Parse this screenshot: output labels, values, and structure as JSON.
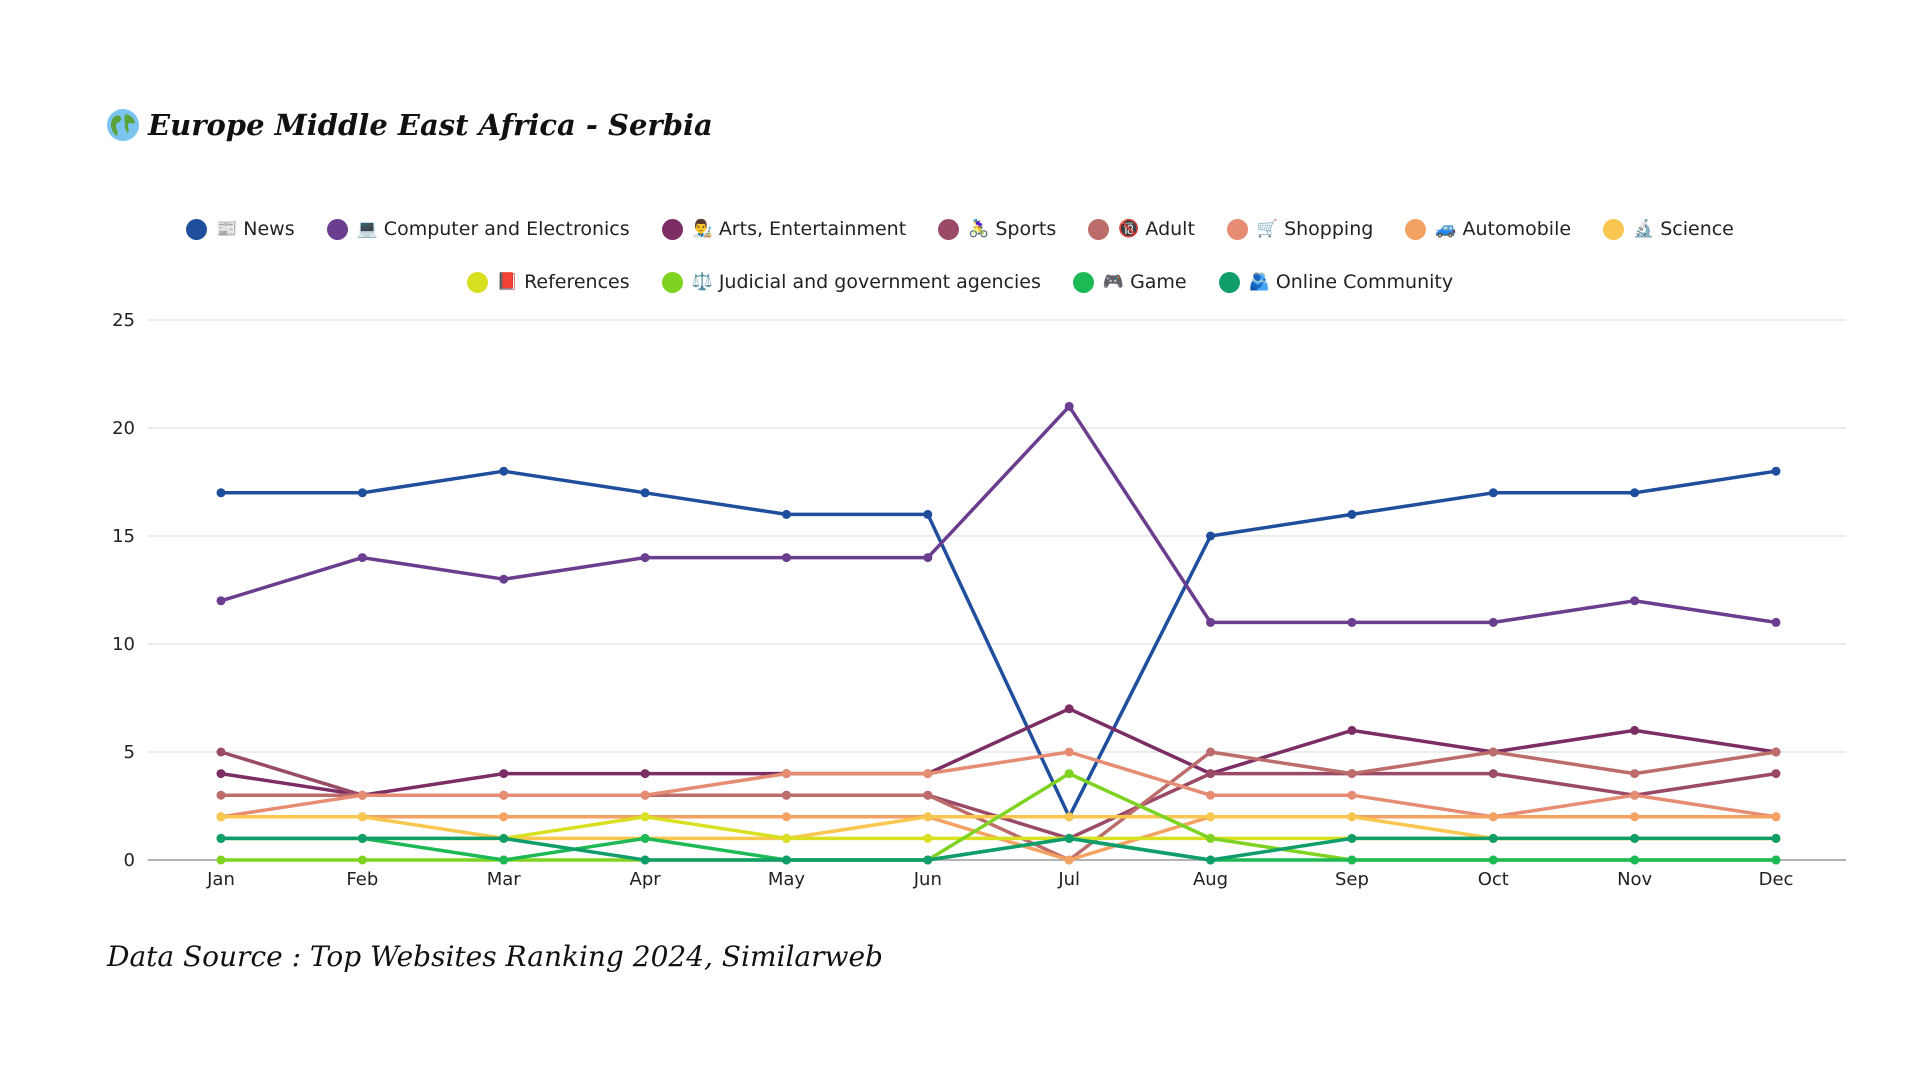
{
  "title": "Europe Middle East Africa - Serbia",
  "source": "Data Source : Top Websites Ranking 2024, Similarweb",
  "chart_data": {
    "type": "line",
    "title": "Europe Middle East Africa - Serbia",
    "xlabel": "",
    "ylabel": "",
    "ylim": [
      0,
      25
    ],
    "yticks": [
      0,
      5,
      10,
      15,
      20,
      25
    ],
    "grid": true,
    "legend_position": "top-center",
    "categories": [
      "Jan",
      "Feb",
      "Mar",
      "Apr",
      "May",
      "Jun",
      "Jul",
      "Aug",
      "Sep",
      "Oct",
      "Nov",
      "Dec"
    ],
    "series": [
      {
        "name": "News",
        "icon": "📰",
        "color": "#1f4e9c",
        "values": [
          17,
          17,
          18,
          17,
          16,
          16,
          2,
          15,
          16,
          17,
          17,
          18
        ]
      },
      {
        "name": "Computer and Electronics",
        "icon": "💻",
        "color": "#6a3d8f",
        "values": [
          12,
          14,
          13,
          14,
          14,
          14,
          21,
          11,
          11,
          11,
          12,
          11
        ]
      },
      {
        "name": "Arts, Entertainment",
        "icon": "👨‍🎨",
        "color": "#7b2d64",
        "values": [
          4,
          3,
          4,
          4,
          4,
          4,
          7,
          4,
          6,
          5,
          6,
          5
        ]
      },
      {
        "name": "Sports",
        "icon": "🚴‍♀️",
        "color": "#9a4a66",
        "values": [
          5,
          3,
          3,
          3,
          3,
          3,
          1,
          4,
          4,
          4,
          3,
          4
        ]
      },
      {
        "name": "Adult",
        "icon": "🔞",
        "color": "#bd6c6c",
        "values": [
          3,
          3,
          3,
          3,
          3,
          3,
          0,
          5,
          4,
          5,
          4,
          5
        ]
      },
      {
        "name": "Shopping",
        "icon": "🛒",
        "color": "#e58c72",
        "values": [
          2,
          3,
          3,
          3,
          4,
          4,
          5,
          3,
          3,
          2,
          3,
          2
        ]
      },
      {
        "name": "Automobile",
        "icon": "🚙",
        "color": "#f4a261",
        "values": [
          2,
          2,
          2,
          2,
          2,
          2,
          0,
          2,
          2,
          2,
          2,
          2
        ]
      },
      {
        "name": "Science",
        "icon": "🔬",
        "color": "#f9c74f",
        "values": [
          2,
          2,
          1,
          1,
          1,
          2,
          2,
          2,
          2,
          1,
          1,
          1
        ]
      },
      {
        "name": "References",
        "icon": "📕",
        "color": "#d9e021",
        "values": [
          1,
          1,
          1,
          2,
          1,
          1,
          1,
          1,
          1,
          1,
          1,
          1
        ]
      },
      {
        "name": "Judicial and government agencies",
        "icon": "⚖️",
        "color": "#7ed321",
        "values": [
          0,
          0,
          0,
          0,
          0,
          0,
          4,
          1,
          0,
          0,
          0,
          0
        ]
      },
      {
        "name": "Game",
        "icon": "🎮",
        "color": "#1db954",
        "values": [
          1,
          1,
          0,
          1,
          0,
          0,
          1,
          0,
          0,
          0,
          0,
          0
        ]
      },
      {
        "name": "Online Community",
        "icon": "🫂",
        "color": "#0f9d6a",
        "values": [
          1,
          1,
          1,
          0,
          0,
          0,
          1,
          0,
          1,
          1,
          1,
          1
        ]
      }
    ]
  }
}
